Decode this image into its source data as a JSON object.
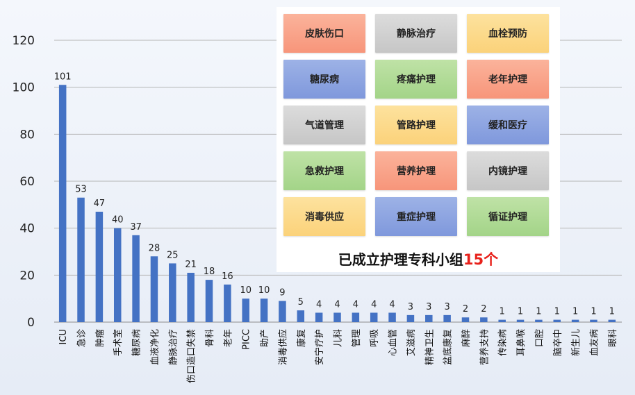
{
  "chart_data": {
    "type": "bar",
    "categories": [
      "ICU",
      "急诊",
      "肿瘤",
      "手术室",
      "糖尿病",
      "血液净化",
      "静脉治疗",
      "伤口造口失禁",
      "骨科",
      "老年",
      "PICC",
      "助产",
      "消毒供应",
      "康复",
      "安宁疗护",
      "儿科",
      "管理",
      "呼吸",
      "心血管",
      "艾滋病",
      "精神卫生",
      "盆底康复",
      "麻醉",
      "营养支持",
      "传染病",
      "耳鼻喉",
      "口腔",
      "脑卒中",
      "新生儿",
      "血友病",
      "眼科"
    ],
    "values": [
      101,
      53,
      47,
      40,
      37,
      28,
      25,
      21,
      18,
      16,
      10,
      10,
      9,
      5,
      4,
      4,
      4,
      4,
      4,
      3,
      3,
      3,
      2,
      2,
      1,
      1,
      1,
      1,
      1,
      1,
      1
    ],
    "yticks": [
      0,
      20,
      40,
      60,
      80,
      100,
      120
    ],
    "ylim": [
      0,
      120
    ],
    "grid": true,
    "bar_color": "#4472c4"
  },
  "groups_panel": {
    "tiles": [
      {
        "label": "皮肤伤口",
        "color": "orange"
      },
      {
        "label": "静脉治疗",
        "color": "gray"
      },
      {
        "label": "血栓预防",
        "color": "yellow"
      },
      {
        "label": "糖尿病",
        "color": "blue"
      },
      {
        "label": "疼痛护理",
        "color": "green"
      },
      {
        "label": "老年护理",
        "color": "orange"
      },
      {
        "label": "气道管理",
        "color": "gray"
      },
      {
        "label": "管路护理",
        "color": "yellow"
      },
      {
        "label": "缓和医疗",
        "color": "blue"
      },
      {
        "label": "急救护理",
        "color": "green"
      },
      {
        "label": "营养护理",
        "color": "orange"
      },
      {
        "label": "内镜护理",
        "color": "gray"
      },
      {
        "label": "消毒供应",
        "color": "yellow"
      },
      {
        "label": "重症护理",
        "color": "blue"
      },
      {
        "label": "循证护理",
        "color": "green"
      }
    ],
    "summary_text": "已成立护理专科小组",
    "summary_count": "15个"
  }
}
